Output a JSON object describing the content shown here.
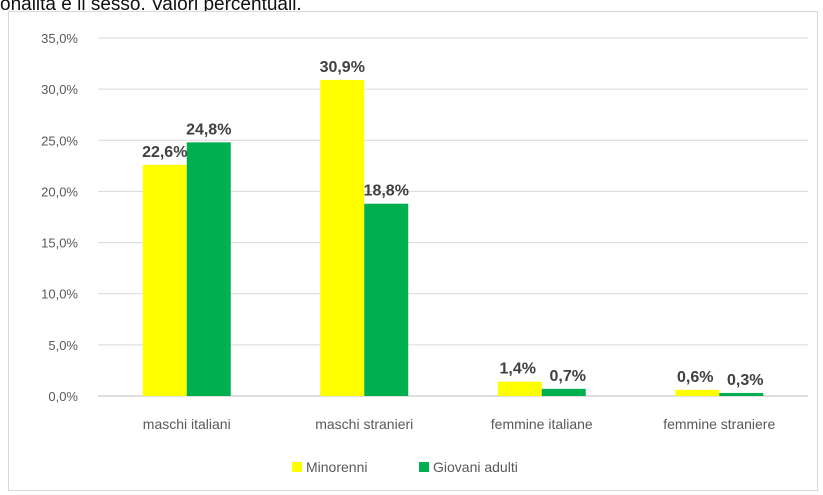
{
  "caption": "onalità e il sesso. Valori percentuali.",
  "colors": {
    "minorenni": "#ffff00",
    "giovani_adulti": "#00b050",
    "grid": "#d9d9d9",
    "text": "#595959",
    "label": "#404040"
  },
  "chart_data": {
    "type": "bar",
    "title": "",
    "xlabel": "",
    "ylabel": "",
    "ylim": [
      0,
      35
    ],
    "yticks": [
      0,
      5,
      10,
      15,
      20,
      25,
      30,
      35
    ],
    "ytick_labels": [
      "0,0%",
      "5,0%",
      "10,0%",
      "15,0%",
      "20,0%",
      "25,0%",
      "30,0%",
      "35,0%"
    ],
    "grid": true,
    "legend_position": "bottom",
    "categories": [
      "maschi italiani",
      "maschi stranieri",
      "femmine italiane",
      "femmine straniere"
    ],
    "series": [
      {
        "name": "Minorenni",
        "color": "#ffff00",
        "values": [
          22.6,
          30.9,
          1.4,
          0.6
        ],
        "labels": [
          "22,6%",
          "30,9%",
          "1,4%",
          "0,6%"
        ]
      },
      {
        "name": "Giovani adulti",
        "color": "#00b050",
        "values": [
          24.8,
          18.8,
          0.7,
          0.3
        ],
        "labels": [
          "24,8%",
          "18,8%",
          "0,7%",
          "0,3%"
        ]
      }
    ]
  }
}
